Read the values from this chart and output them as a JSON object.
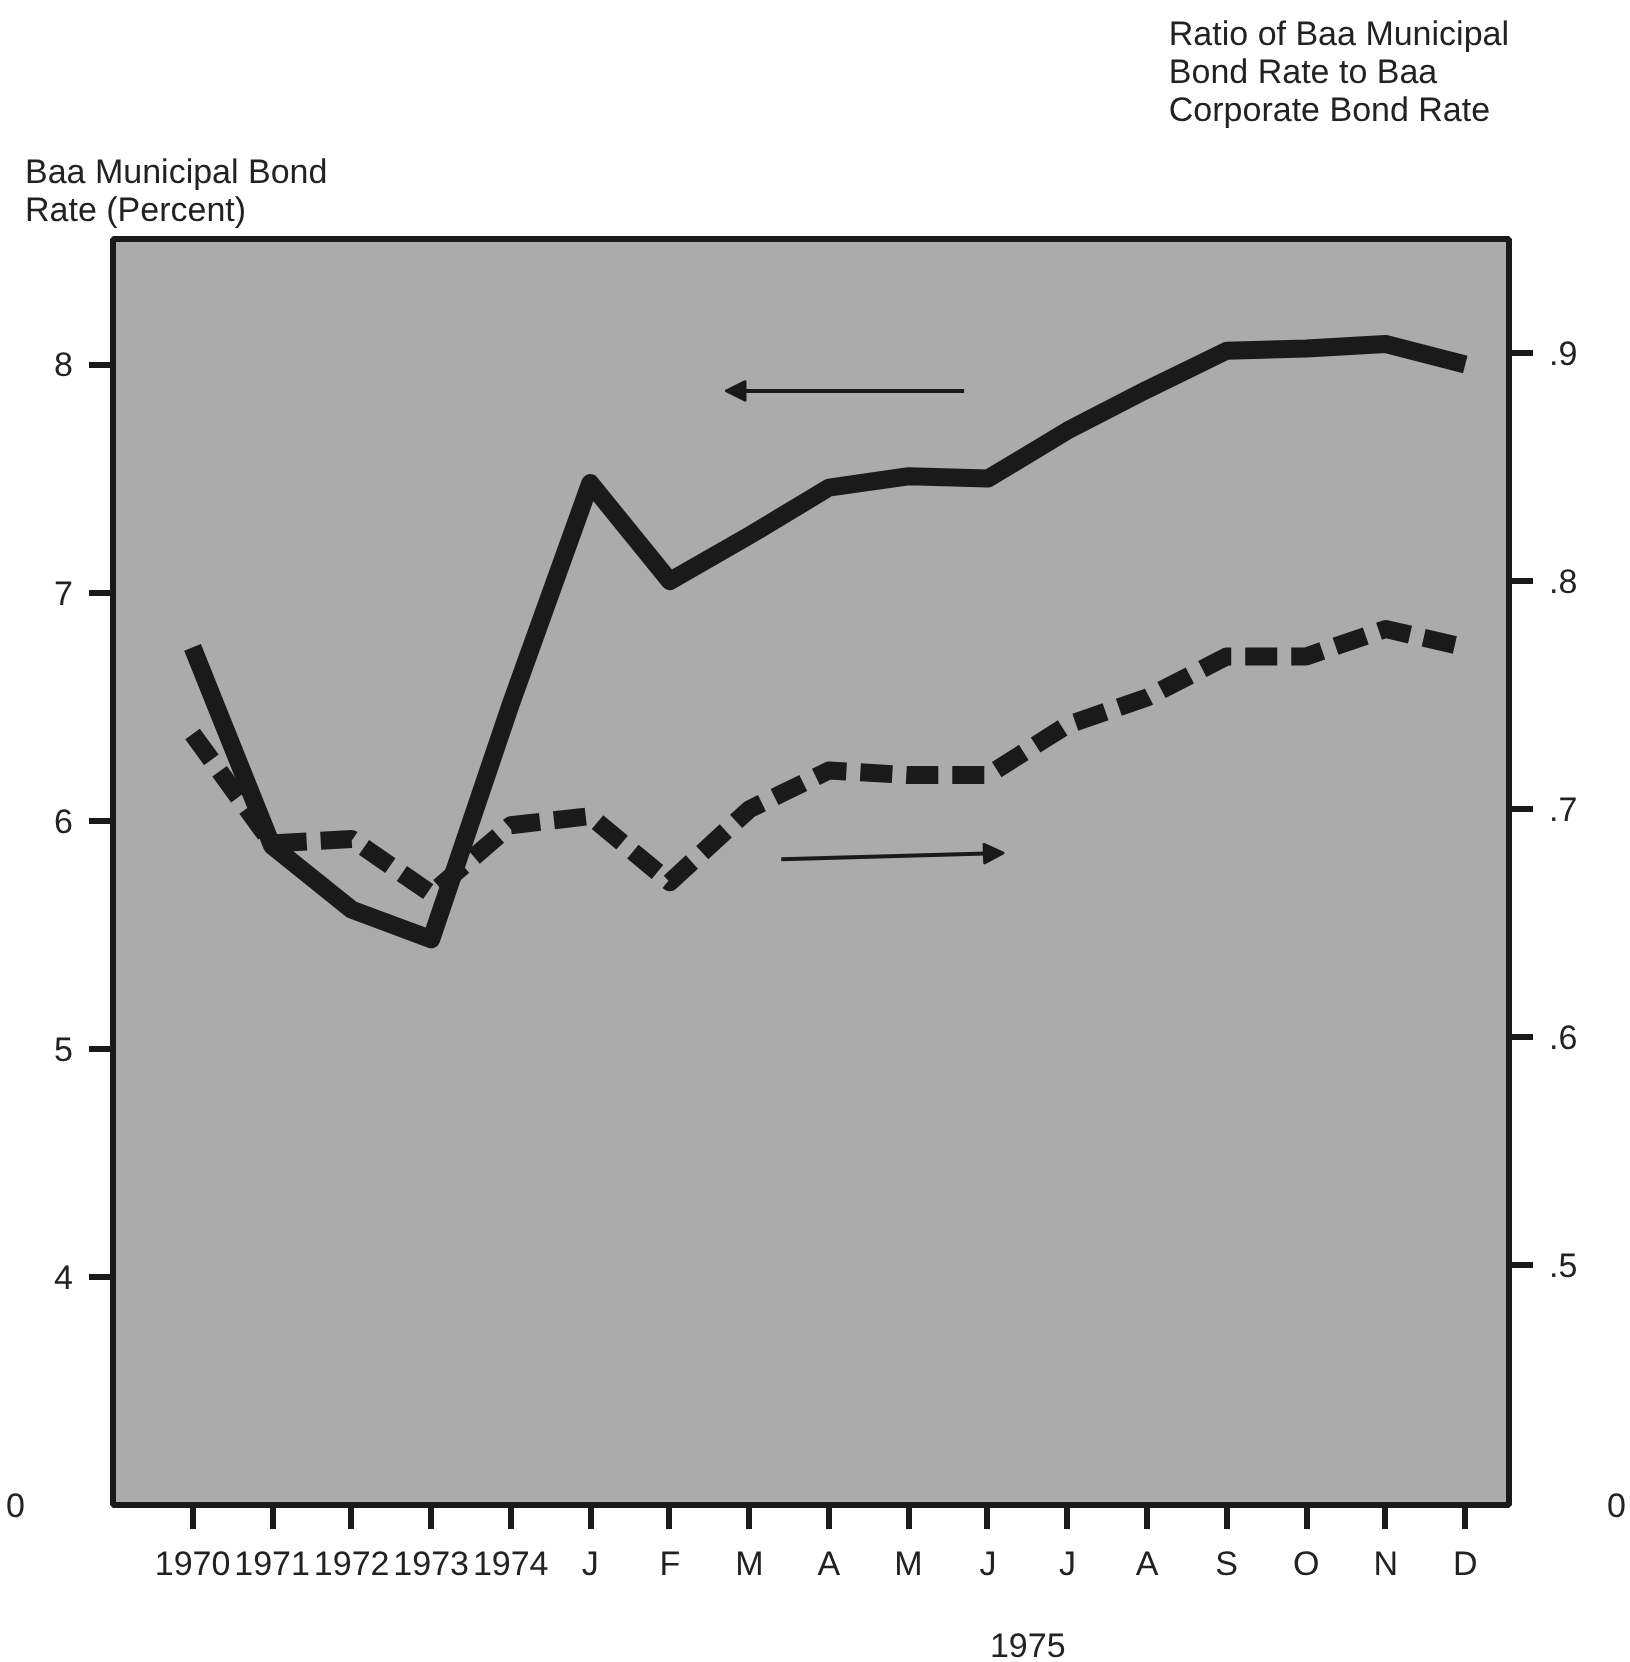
{
  "chart_data": {
    "type": "line",
    "ylabel": "Baa Municipal Bond Rate (Percent)",
    "y2label": "Ratio of Baa Municipal Bond Rate to Baa Corporate Bond Rate",
    "categories": [
      "1970",
      "1971",
      "1972",
      "1973",
      "1974",
      "J",
      "F",
      "M",
      "A",
      "M",
      "J",
      "J",
      "A",
      "S",
      "O",
      "N",
      "D"
    ],
    "annotations": [
      "1975",
      "0",
      "0"
    ],
    "series": [
      {
        "color": "#1a1a1a",
        "line_style": "solid",
        "values": [
          6.76,
          5.89,
          5.61,
          5.48,
          6.51,
          7.48,
          7.05,
          7.25,
          7.46,
          7.51,
          7.5,
          7.71,
          7.89,
          8.06,
          8.07,
          8.09,
          8.0
        ]
      },
      {
        "color": "#1a1a1a",
        "line_style": "dashed",
        "axis": "y2",
        "values": [
          0.733,
          0.685,
          0.687,
          0.663,
          0.693,
          0.697,
          0.668,
          0.7,
          0.717,
          0.715,
          0.715,
          0.737,
          0.749,
          0.767,
          0.767,
          0.779,
          0.771
        ]
      }
    ],
    "ylim": [
      3,
      8.55
    ],
    "yticks": [
      4,
      5,
      6,
      7,
      8
    ],
    "y2lim": [
      0.395,
      0.95
    ],
    "y2ticks": [
      {
        "value": 0.5,
        "label": ".5"
      },
      {
        "value": 0.6,
        "label": ".6"
      },
      {
        "value": 0.7,
        "label": ".7"
      },
      {
        "value": 0.8,
        "label": ".8"
      },
      {
        "value": 0.9,
        "label": ".9"
      }
    ],
    "grid": false
  }
}
